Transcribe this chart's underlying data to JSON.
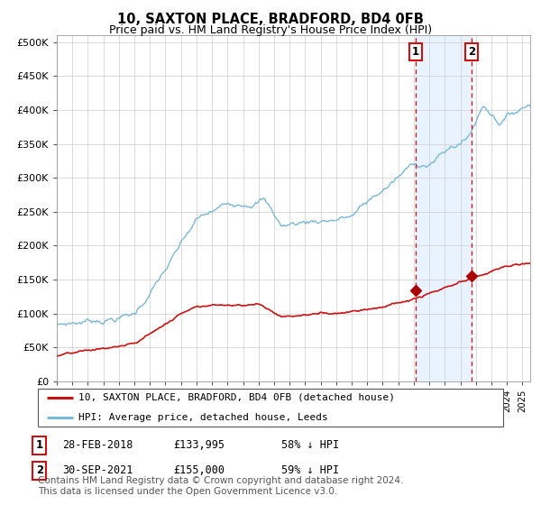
{
  "title": "10, SAXTON PLACE, BRADFORD, BD4 0FB",
  "subtitle": "Price paid vs. HM Land Registry's House Price Index (HPI)",
  "title_fontsize": 10.5,
  "subtitle_fontsize": 9,
  "background_color": "#ffffff",
  "plot_bg_color": "#ffffff",
  "grid_color": "#cccccc",
  "hpi_color": "#7ab8d9",
  "price_color": "#cc1111",
  "marker_color": "#aa0000",
  "shade_color": "#ddeeff",
  "ylim": [
    0,
    510000
  ],
  "yticks": [
    0,
    50000,
    100000,
    150000,
    200000,
    250000,
    300000,
    350000,
    400000,
    450000,
    500000
  ],
  "ytick_labels": [
    "£0",
    "£50K",
    "£100K",
    "£150K",
    "£200K",
    "£250K",
    "£300K",
    "£350K",
    "£400K",
    "£450K",
    "£500K"
  ],
  "xmin": 1995,
  "xmax": 2025.5,
  "sale1_date_num": 2018.12,
  "sale1_price": 133995,
  "sale1_label": "1",
  "sale1_date_str": "28-FEB-2018",
  "sale1_price_str": "£133,995",
  "sale1_pct": "58% ↓ HPI",
  "sale2_date_num": 2021.75,
  "sale2_price": 155000,
  "sale2_label": "2",
  "sale2_date_str": "30-SEP-2021",
  "sale2_price_str": "£155,000",
  "sale2_pct": "59% ↓ HPI",
  "legend_line1": "10, SAXTON PLACE, BRADFORD, BD4 0FB (detached house)",
  "legend_line2": "HPI: Average price, detached house, Leeds",
  "footer": "Contains HM Land Registry data © Crown copyright and database right 2024.\nThis data is licensed under the Open Government Licence v3.0.",
  "footer_fontsize": 7.5
}
